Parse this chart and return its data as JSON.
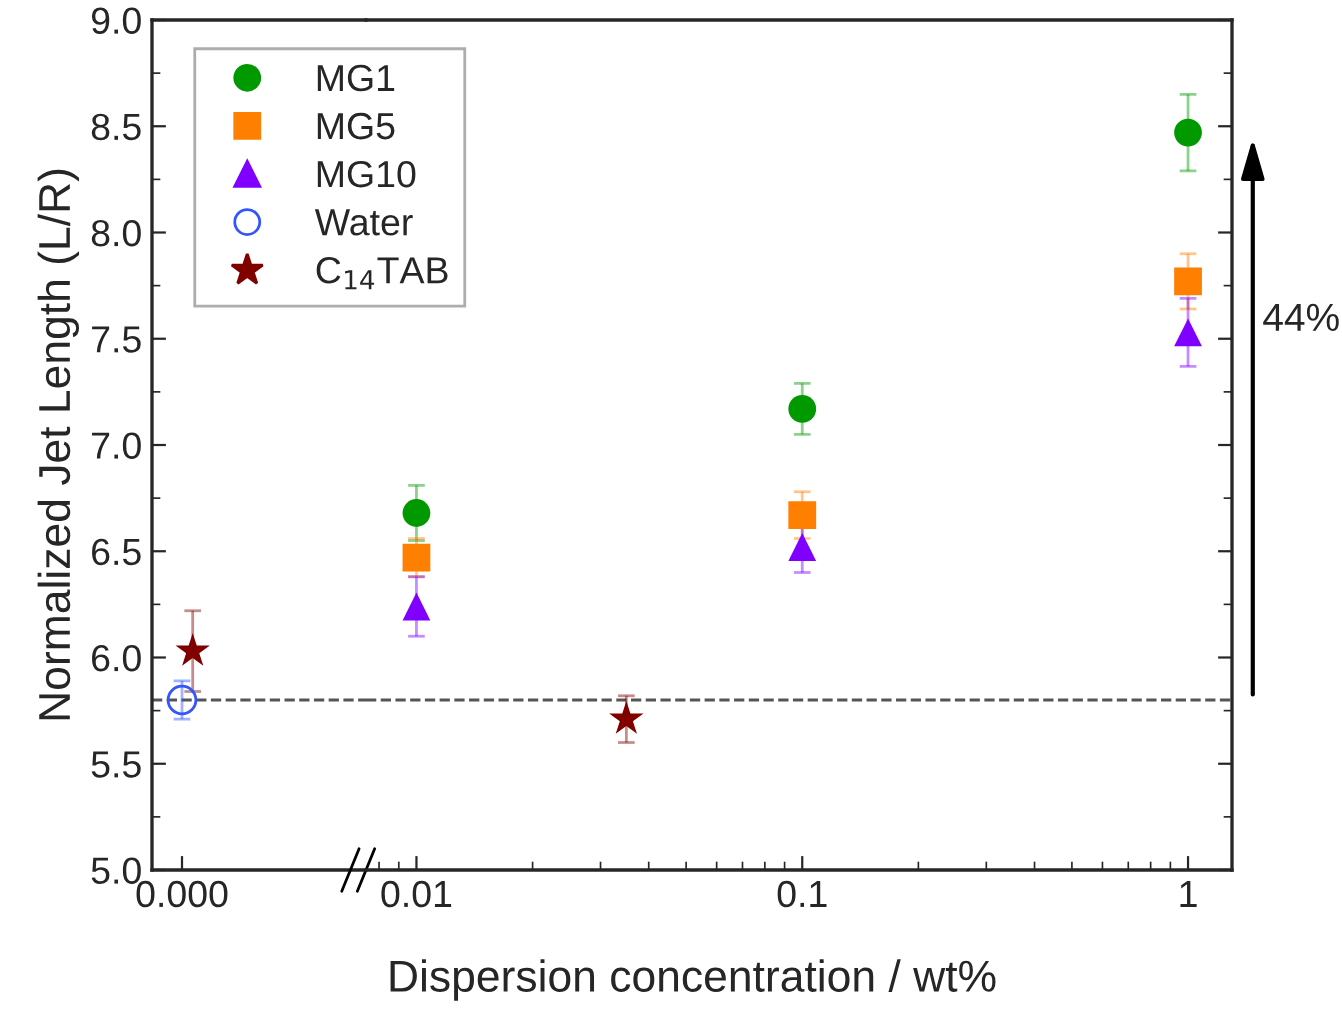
{
  "chart_data": [
    {
      "type": "scatter",
      "ylabel": "Normalized Jet Length (L/R)",
      "categories": [
        "0.000"
      ],
      "ylim": [
        5.0,
        9.0
      ],
      "yticks": [
        {
          "value": 5,
          "label": "5.0"
        },
        5.5,
        {
          "value": 6,
          "label": "6.0"
        },
        6.5,
        {
          "value": 7,
          "label": "7.0"
        },
        7.5,
        {
          "value": 8,
          "label": "8.0"
        },
        8.5,
        {
          "value": 9,
          "label": "9.0"
        }
      ],
      "legend": "top right",
      "series": [
        {
          "name": "Water",
          "color": "#3355ff",
          "marker": "open circle",
          "values": [
            5.8
          ],
          "errors": [
            0.09
          ]
        },
        {
          "name": "C$_{14}$TAB",
          "color": "#800000",
          "marker": "star",
          "values": [
            6.03
          ],
          "errors": [
            0.19
          ]
        }
      ],
      "ref_lines": [
        {
          "axis": "y",
          "value": 5.8,
          "color": "#555555",
          "line_style": "dashed"
        }
      ]
    },
    {
      "type": "scatter",
      "xlabel": "Dispersion concentration / wt%",
      "log": "x",
      "xlim": [
        0.0074,
        1.3
      ],
      "xticks": [
        {
          "value": 0.01,
          "label": "0.01"
        },
        {
          "value": 0.1,
          "label": "0.1"
        },
        {
          "value": 1,
          "label": "1"
        }
      ],
      "ylim": [
        5.0,
        9.0
      ],
      "yticks": [
        5,
        5.5,
        6,
        6.5,
        7,
        7.5,
        8,
        8.5,
        9
      ],
      "tick_labels": "x",
      "legend": "top left",
      "series": [
        {
          "name": "MG1",
          "color": "#009900",
          "marker": "circle",
          "x": [
            0.01,
            0.1,
            1
          ],
          "values": [
            6.68,
            7.17,
            8.47
          ],
          "errors": [
            0.13,
            0.12,
            0.18
          ]
        },
        {
          "name": "MG5",
          "color": "#ff8000",
          "marker": "square",
          "x": [
            0.01,
            0.1,
            1
          ],
          "values": [
            6.47,
            6.67,
            7.77
          ],
          "errors": [
            0.09,
            0.11,
            0.13
          ]
        },
        {
          "name": "MG10",
          "color": "#8000ff",
          "marker": "triangle",
          "x": [
            0.01,
            0.1,
            1
          ],
          "values": [
            6.24,
            6.52,
            7.53
          ],
          "errors": [
            0.14,
            0.12,
            0.16
          ]
        },
        {
          "color": "#800000",
          "marker": "star",
          "x": [
            0.035
          ],
          "values": [
            5.71
          ],
          "errors": [
            0.11
          ]
        }
      ],
      "ref_lines": [
        {
          "axis": "y",
          "value": 5.8,
          "color": "#555555",
          "line_style": "dashed"
        }
      ],
      "annotations": [
        "44%"
      ]
    }
  ]
}
